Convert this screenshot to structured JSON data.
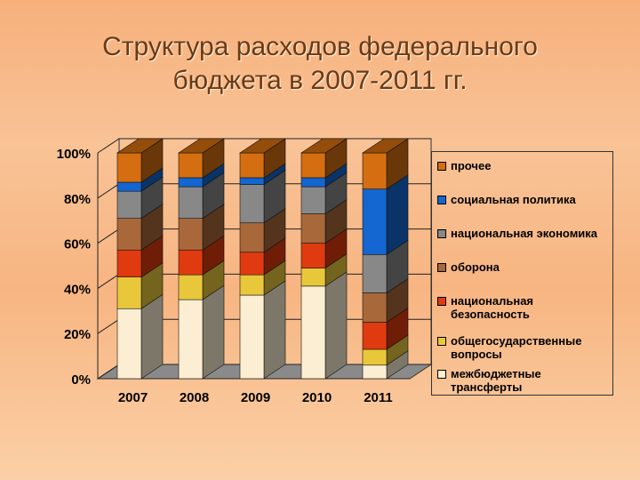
{
  "title_line1": "Структура расходов федерального",
  "title_line2": "бюджета в 2007-2011 гг.",
  "chart_data": {
    "type": "bar",
    "stacked": true,
    "percent": true,
    "title": "Структура расходов федерального бюджета в 2007-2011 гг.",
    "categories": [
      "2007",
      "2008",
      "2009",
      "2010",
      "2011"
    ],
    "yticks": [
      "0%",
      "20%",
      "40%",
      "60%",
      "80%",
      "100%"
    ],
    "ylim": [
      0,
      100
    ],
    "legend_position": "right",
    "series": [
      {
        "name": "межбюджетные трансферты",
        "color": "#fbeed2",
        "values": [
          31,
          35,
          37,
          41,
          6
        ]
      },
      {
        "name": "общегосударственные вопросы",
        "color": "#e8c83a",
        "values": [
          14,
          11,
          9,
          8,
          7
        ]
      },
      {
        "name": "национальная безопасность",
        "color": "#e03a10",
        "values": [
          12,
          11,
          10,
          11,
          12
        ]
      },
      {
        "name": "оборона",
        "color": "#a8683a",
        "values": [
          14,
          14,
          13,
          13,
          13
        ]
      },
      {
        "name": "национальная экономика",
        "color": "#888888",
        "values": [
          12,
          14,
          17,
          12,
          17
        ]
      },
      {
        "name": "социальная политика",
        "color": "#1466d0",
        "values": [
          4,
          4,
          3,
          4,
          29
        ]
      },
      {
        "name": "прочее",
        "color": "#d46e10",
        "values": [
          13,
          11,
          11,
          11,
          16
        ]
      }
    ]
  }
}
